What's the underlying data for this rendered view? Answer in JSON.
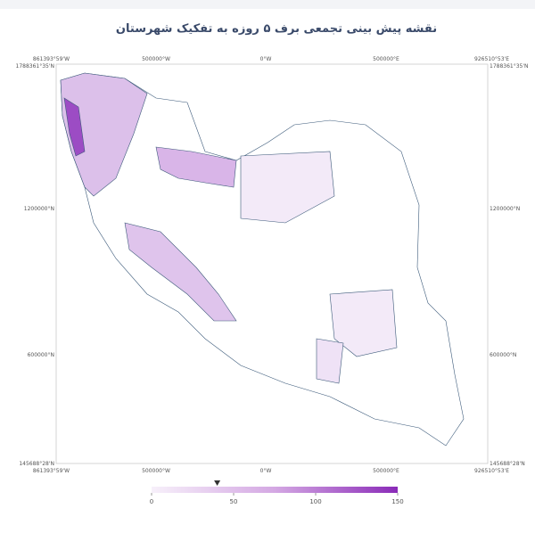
{
  "title": "نقشه پیش بینی تجمعی برف ۵ روزه به تفکیک شهرستان",
  "map": {
    "x_labels": [
      "861393°59'W",
      "500000°W",
      "0°W",
      "500000°E",
      "926510°53'E"
    ],
    "y_labels": [
      "1788361°35'N",
      "1200000°N",
      "600000°N",
      "145688°28'N"
    ]
  },
  "colorbar": {
    "lim": [
      0,
      150
    ],
    "ticks": [
      0,
      50,
      100,
      150
    ],
    "marker": 40
  }
}
